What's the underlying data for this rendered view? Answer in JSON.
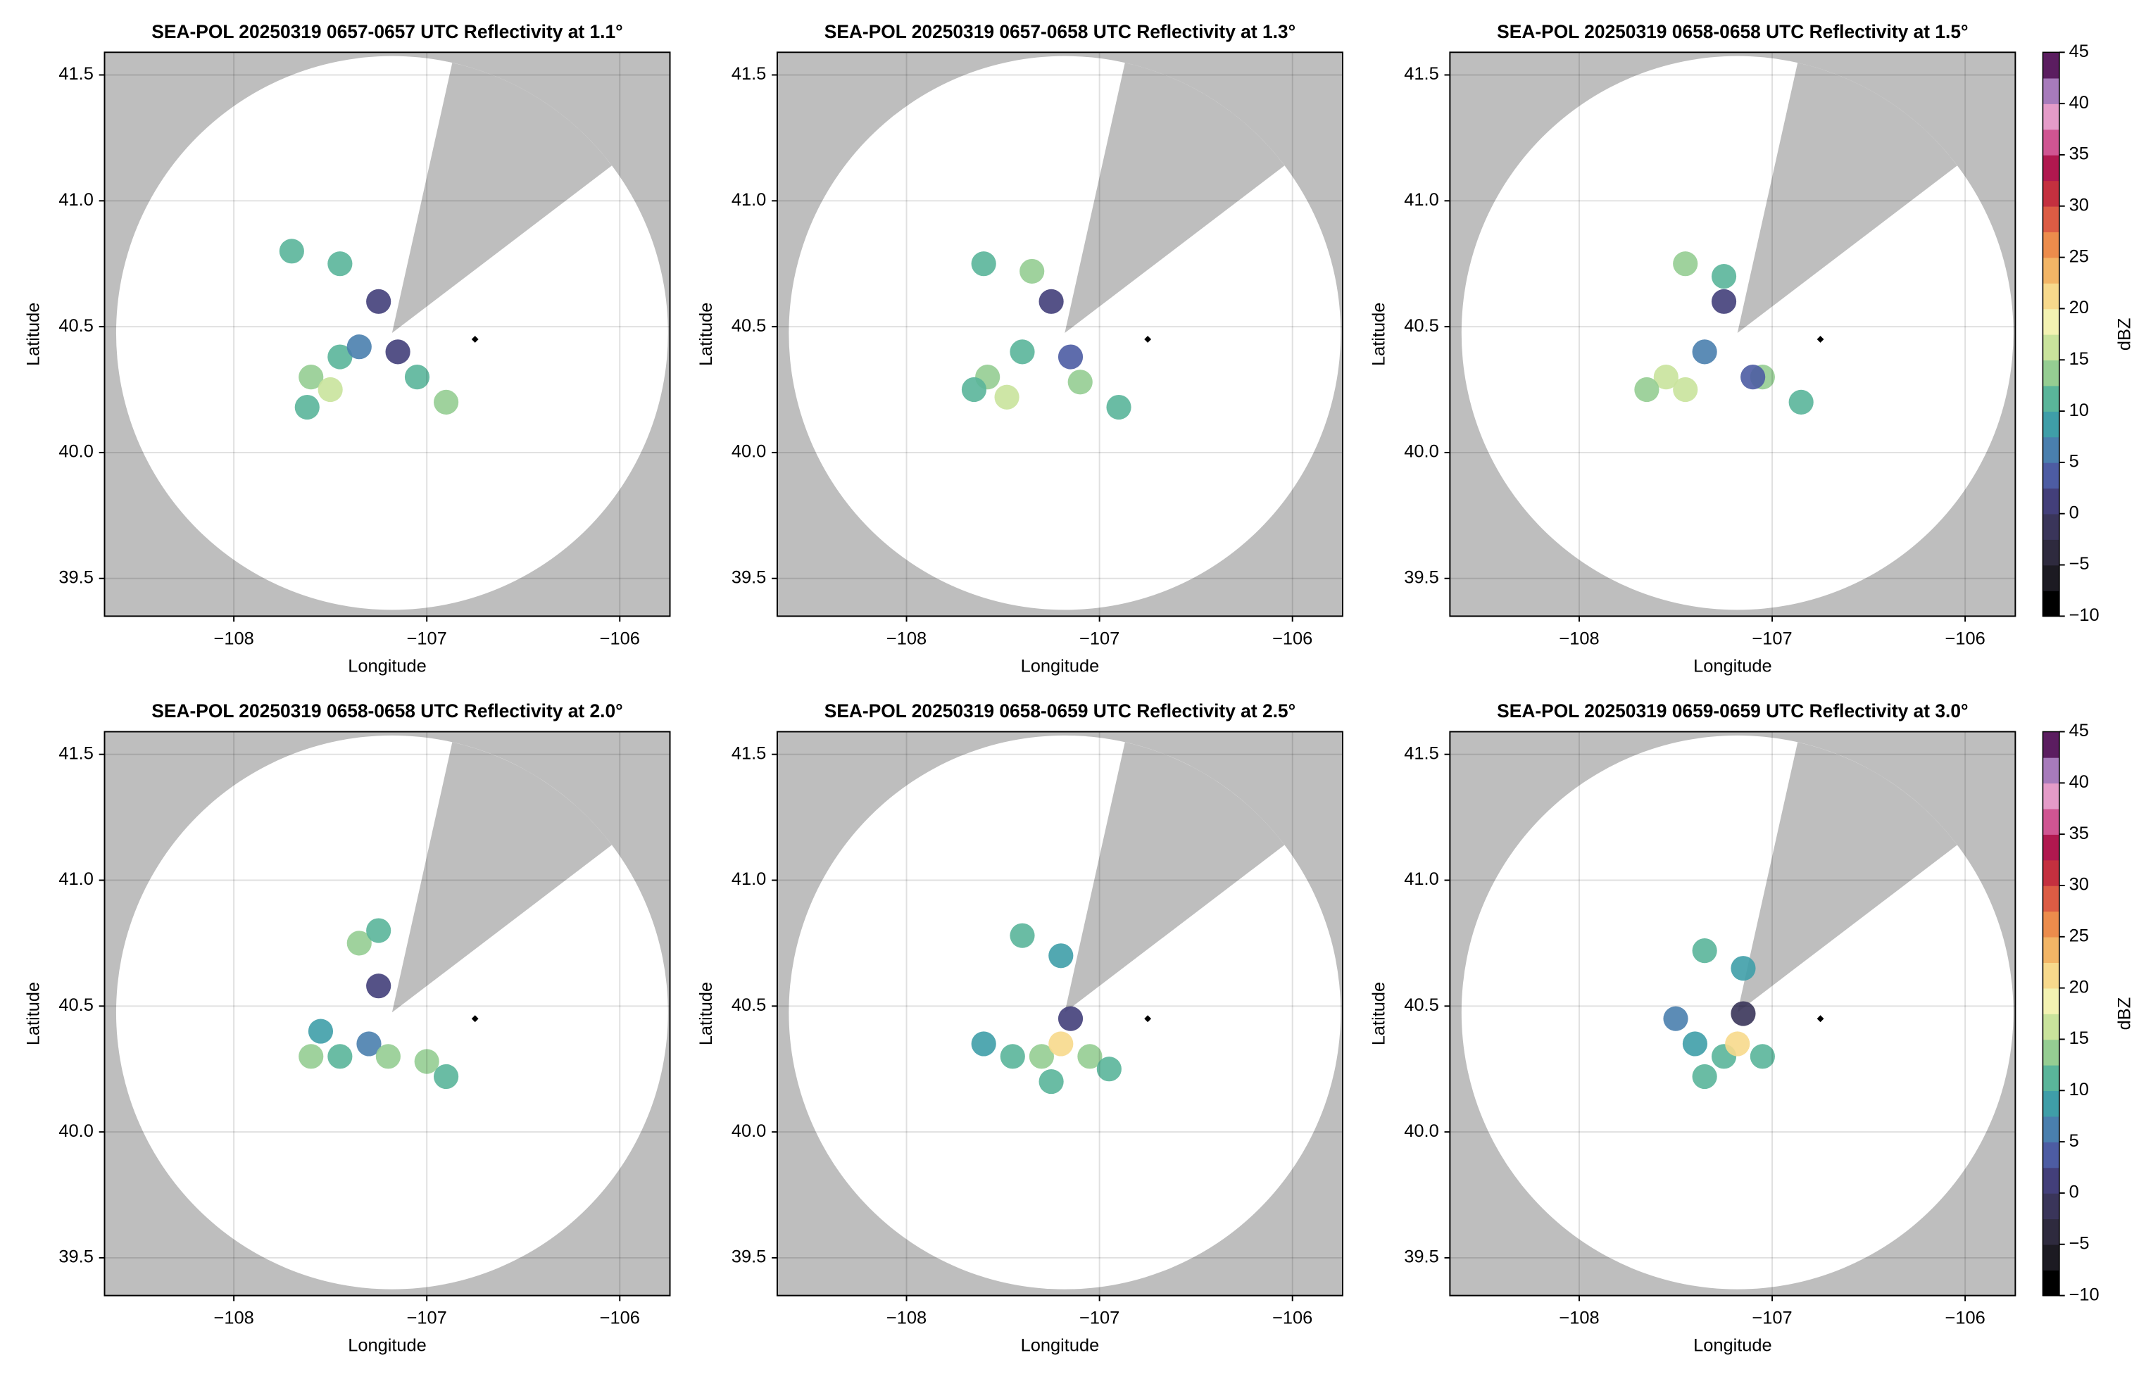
{
  "chart_data": [
    {
      "type": "scatter",
      "title": "SEA-POL 20250319 0657-0657 UTC Reflectivity at 1.1°",
      "xlabel": "Longitude",
      "ylabel": "Latitude",
      "xlim": [
        -108.67,
        -105.74
      ],
      "ylim": [
        39.35,
        41.59
      ],
      "xticks": [
        {
          "value": -108,
          "label": "−108"
        },
        {
          "value": -107,
          "label": "−107"
        },
        {
          "value": -106,
          "label": "−106"
        }
      ],
      "yticks": [
        39.5,
        {
          "value": 40,
          "label": "40.0"
        },
        40.5,
        {
          "value": 41,
          "label": "41.0"
        },
        41.5
      ],
      "x": [
        -107.6,
        -107.5,
        -107.45,
        -107.62,
        -107.35,
        -107.05,
        -106.9,
        -107.7,
        -107.45,
        -107.25,
        -107.15
      ],
      "y": [
        40.3,
        40.25,
        40.38,
        40.18,
        40.42,
        40.3,
        40.2,
        40.8,
        40.75,
        40.6,
        40.4
      ],
      "values": [
        14,
        17,
        12,
        12,
        5,
        12,
        13,
        10,
        12,
        2,
        0
      ],
      "marker": {
        "x": -106.75,
        "y": 40.45
      }
    },
    {
      "type": "scatter",
      "title": "SEA-POL 20250319 0657-0658 UTC Reflectivity at 1.3°",
      "xlabel": "Longitude",
      "ylabel": "Latitude",
      "xlim": [
        -108.67,
        -105.74
      ],
      "ylim": [
        39.35,
        41.59
      ],
      "xticks": [
        {
          "value": -108,
          "label": "−108"
        },
        {
          "value": -107,
          "label": "−107"
        },
        {
          "value": -106,
          "label": "−106"
        }
      ],
      "yticks": [
        39.5,
        {
          "value": 40,
          "label": "40.0"
        },
        40.5,
        {
          "value": 41,
          "label": "41.0"
        },
        41.5
      ],
      "x": [
        -107.58,
        -107.48,
        -107.4,
        -107.65,
        -107.1,
        -106.9,
        -107.6,
        -107.35,
        -107.25,
        -107.15
      ],
      "y": [
        40.3,
        40.22,
        40.4,
        40.25,
        40.28,
        40.18,
        40.75,
        40.72,
        40.6,
        40.38
      ],
      "values": [
        14,
        16,
        10,
        12,
        14,
        12,
        10,
        14,
        2,
        3
      ],
      "marker": {
        "x": -106.75,
        "y": 40.45
      }
    },
    {
      "type": "scatter",
      "title": "SEA-POL 20250319 0658-0658 UTC Reflectivity at 1.5°",
      "xlabel": "Longitude",
      "ylabel": "Latitude",
      "xlim": [
        -108.67,
        -105.74
      ],
      "ylim": [
        39.35,
        41.59
      ],
      "xticks": [
        {
          "value": -108,
          "label": "−108"
        },
        {
          "value": -107,
          "label": "−107"
        },
        {
          "value": -106,
          "label": "−106"
        }
      ],
      "yticks": [
        39.5,
        {
          "value": 40,
          "label": "40.0"
        },
        40.5,
        {
          "value": 41,
          "label": "41.0"
        },
        41.5
      ],
      "x": [
        -107.55,
        -107.45,
        -107.35,
        -107.65,
        -107.05,
        -106.85,
        -107.45,
        -107.25,
        -107.25,
        -107.1
      ],
      "y": [
        40.3,
        40.25,
        40.4,
        40.25,
        40.3,
        40.2,
        40.75,
        40.7,
        40.6,
        40.3
      ],
      "values": [
        15,
        17,
        6,
        13,
        14,
        12,
        14,
        12,
        2,
        3
      ],
      "marker": {
        "x": -106.75,
        "y": 40.45
      },
      "colorbar": {
        "label": "dBZ",
        "lim": [
          -10,
          45
        ],
        "ticks": [
          {
            "value": -10,
            "label": "−10"
          },
          {
            "value": -5,
            "label": "−5"
          },
          0,
          5,
          10,
          15,
          20,
          25,
          30,
          35,
          40,
          45
        ],
        "colors": [
          "#000000",
          "#1c1a22",
          "#2e2a3e",
          "#3a355a",
          "#433f7a",
          "#4d5ca3",
          "#4a7fae",
          "#3f9ea8",
          "#5ab59a",
          "#95cd92",
          "#c9e39c",
          "#f3f2b2",
          "#f7d98c",
          "#f2b566",
          "#ec8c4c",
          "#dc5c44",
          "#c4303f",
          "#b0184f",
          "#cf5592",
          "#e49bc8",
          "#a77bbb",
          "#5b1d60"
        ]
      }
    },
    {
      "type": "scatter",
      "title": "SEA-POL 20250319 0658-0658 UTC Reflectivity at 2.0°",
      "xlabel": "Longitude",
      "ylabel": "Latitude",
      "xlim": [
        -108.67,
        -105.74
      ],
      "ylim": [
        39.35,
        41.59
      ],
      "xticks": [
        {
          "value": -108,
          "label": "−108"
        },
        {
          "value": -107,
          "label": "−107"
        },
        {
          "value": -106,
          "label": "−106"
        }
      ],
      "yticks": [
        39.5,
        {
          "value": 40,
          "label": "40.0"
        },
        40.5,
        {
          "value": 41,
          "label": "41.0"
        },
        41.5
      ],
      "x": [
        -107.6,
        -107.45,
        -107.3,
        -107.2,
        -107.0,
        -106.9,
        -107.35,
        -107.25,
        -107.25,
        -107.55
      ],
      "y": [
        40.3,
        40.3,
        40.35,
        40.3,
        40.28,
        40.22,
        40.75,
        40.8,
        40.58,
        40.4
      ],
      "values": [
        14,
        12,
        5,
        14,
        13,
        12,
        14,
        10,
        1,
        8
      ],
      "marker": {
        "x": -106.75,
        "y": 40.45
      }
    },
    {
      "type": "scatter",
      "title": "SEA-POL 20250319 0658-0659 UTC Reflectivity at 2.5°",
      "xlabel": "Longitude",
      "ylabel": "Latitude",
      "xlim": [
        -108.67,
        -105.74
      ],
      "ylim": [
        39.35,
        41.59
      ],
      "xticks": [
        {
          "value": -108,
          "label": "−108"
        },
        {
          "value": -107,
          "label": "−107"
        },
        {
          "value": -106,
          "label": "−106"
        }
      ],
      "yticks": [
        39.5,
        {
          "value": 40,
          "label": "40.0"
        },
        40.5,
        {
          "value": 41,
          "label": "41.0"
        },
        41.5
      ],
      "x": [
        -107.45,
        -107.3,
        -107.2,
        -107.05,
        -106.95,
        -107.6,
        -107.25,
        -107.4,
        -107.2,
        -107.15
      ],
      "y": [
        40.3,
        40.3,
        40.35,
        40.3,
        40.25,
        40.35,
        40.2,
        40.78,
        40.7,
        40.45
      ],
      "values": [
        10,
        13,
        22,
        14,
        10,
        8,
        11,
        10,
        8,
        0
      ],
      "marker": {
        "x": -106.75,
        "y": 40.45
      }
    },
    {
      "type": "scatter",
      "title": "SEA-POL 20250319 0659-0659 UTC Reflectivity at 3.0°",
      "xlabel": "Longitude",
      "ylabel": "Latitude",
      "xlim": [
        -108.67,
        -105.74
      ],
      "ylim": [
        39.35,
        41.59
      ],
      "xticks": [
        {
          "value": -108,
          "label": "−108"
        },
        {
          "value": -107,
          "label": "−107"
        },
        {
          "value": -106,
          "label": "−106"
        }
      ],
      "yticks": [
        39.5,
        {
          "value": 40,
          "label": "40.0"
        },
        40.5,
        {
          "value": 41,
          "label": "41.0"
        },
        41.5
      ],
      "x": [
        -107.4,
        -107.25,
        -107.18,
        -107.05,
        -107.35,
        -107.5,
        -107.35,
        -107.15,
        -107.15
      ],
      "y": [
        40.35,
        40.3,
        40.35,
        40.3,
        40.22,
        40.45,
        40.72,
        40.65,
        40.47
      ],
      "values": [
        8,
        12,
        20,
        11,
        10,
        6,
        10,
        8,
        -2
      ],
      "marker": {
        "x": -106.75,
        "y": 40.45
      },
      "colorbar": {
        "label": "dBZ",
        "lim": [
          -10,
          45
        ],
        "ticks": [
          {
            "value": -10,
            "label": "−10"
          },
          {
            "value": -5,
            "label": "−5"
          },
          0,
          5,
          10,
          15,
          20,
          25,
          30,
          35,
          40,
          45
        ],
        "colors": [
          "#000000",
          "#1c1a22",
          "#2e2a3e",
          "#3a355a",
          "#433f7a",
          "#4d5ca3",
          "#4a7fae",
          "#3f9ea8",
          "#5ab59a",
          "#95cd92",
          "#c9e39c",
          "#f3f2b2",
          "#f7d98c",
          "#f2b566",
          "#ec8c4c",
          "#dc5c44",
          "#c4303f",
          "#b0184f",
          "#cf5592",
          "#e49bc8",
          "#a77bbb",
          "#5b1d60"
        ]
      }
    }
  ]
}
